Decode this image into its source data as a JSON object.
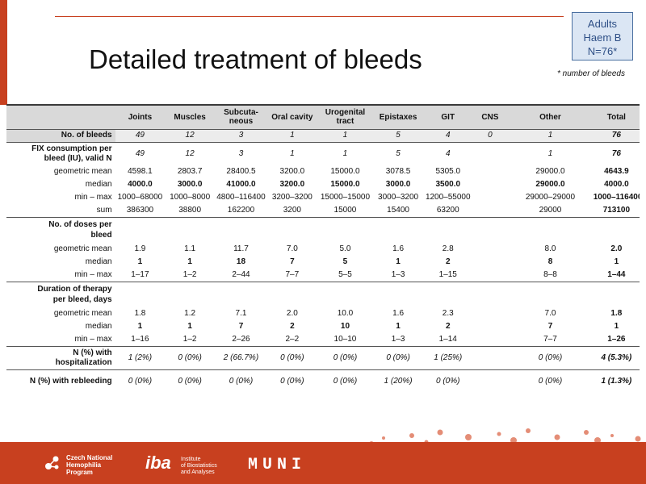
{
  "title": "Detailed treatment of bleeds",
  "badge": {
    "line1": "Adults",
    "line2": "Haem B",
    "line3": "N=76*"
  },
  "footnote": "* number of bleeds",
  "columns": [
    "Joints",
    "Muscles",
    "Subcuta-neous",
    "Oral cavity",
    "Urogenital tract",
    "Epistaxes",
    "GIT",
    "CNS",
    "Other",
    "Total"
  ],
  "column_lines": [
    [
      "Joints"
    ],
    [
      "Muscles"
    ],
    [
      "Subcuta-",
      "neous"
    ],
    [
      "Oral cavity"
    ],
    [
      "Urogenital",
      "tract"
    ],
    [
      "Epistaxes"
    ],
    [
      "GIT"
    ],
    [
      "CNS"
    ],
    [
      "Other"
    ],
    [
      "Total"
    ]
  ],
  "rows": {
    "no_bleeds": {
      "label": "No. of bleeds",
      "values": [
        "49",
        "12",
        "3",
        "1",
        "1",
        "5",
        "4",
        "0",
        "1",
        "76"
      ]
    },
    "fix_valid": {
      "label_line1": "FIX consumption per",
      "label_line2": "bleed (IU), valid N",
      "values": [
        "49",
        "12",
        "3",
        "1",
        "1",
        "5",
        "4",
        "",
        "1",
        "76"
      ]
    },
    "fix_geo": {
      "label": "geometric mean",
      "values": [
        "4598.1",
        "2803.7",
        "28400.5",
        "3200.0",
        "15000.0",
        "3078.5",
        "5305.0",
        "",
        "29000.0",
        "4643.9"
      ]
    },
    "fix_median": {
      "label": "median",
      "values": [
        "4000.0",
        "3000.0",
        "41000.0",
        "3200.0",
        "15000.0",
        "3000.0",
        "3500.0",
        "",
        "29000.0",
        "4000.0"
      ]
    },
    "fix_minmax": {
      "label": "min – max",
      "values": [
        "1000–68000",
        "1000–8000",
        "4800–116400",
        "3200–3200",
        "15000–15000",
        "3000–3200",
        "1200–55000",
        "",
        "29000–29000",
        "1000–116400"
      ]
    },
    "fix_sum": {
      "label": "sum",
      "values": [
        "386300",
        "38800",
        "162200",
        "3200",
        "15000",
        "15400",
        "63200",
        "",
        "29000",
        "713100"
      ]
    },
    "doses_header": {
      "label_line1": "No. of doses per",
      "label_line2": "bleed"
    },
    "doses_geo": {
      "label": "geometric mean",
      "values": [
        "1.9",
        "1.1",
        "11.7",
        "7.0",
        "5.0",
        "1.6",
        "2.8",
        "",
        "8.0",
        "2.0"
      ]
    },
    "doses_median": {
      "label": "median",
      "values": [
        "1",
        "1",
        "18",
        "7",
        "5",
        "1",
        "2",
        "",
        "8",
        "1"
      ]
    },
    "doses_minmax": {
      "label": "min – max",
      "values": [
        "1–17",
        "1–2",
        "2–44",
        "7–7",
        "5–5",
        "1–3",
        "1–15",
        "",
        "8–8",
        "1–44"
      ]
    },
    "dur_header": {
      "label_line1": "Duration of therapy",
      "label_line2": "per bleed, days"
    },
    "dur_geo": {
      "label": "geometric mean",
      "values": [
        "1.8",
        "1.2",
        "7.1",
        "2.0",
        "10.0",
        "1.6",
        "2.3",
        "",
        "7.0",
        "1.8"
      ]
    },
    "dur_median": {
      "label": "median",
      "values": [
        "1",
        "1",
        "7",
        "2",
        "10",
        "1",
        "2",
        "",
        "7",
        "1"
      ]
    },
    "dur_minmax": {
      "label": "min – max",
      "values": [
        "1–16",
        "1–2",
        "2–26",
        "2–2",
        "10–10",
        "1–3",
        "1–14",
        "",
        "7–7",
        "1–26"
      ]
    },
    "hosp": {
      "label_line1": "N (%) with",
      "label_line2": "hospitalization",
      "values": [
        "1 (2%)",
        "0 (0%)",
        "2 (66.7%)",
        "0 (0%)",
        "0 (0%)",
        "0 (0%)",
        "1 (25%)",
        "",
        "0 (0%)",
        "4 (5.3%)"
      ]
    },
    "rebleed": {
      "label": "N (%) with rebleeding",
      "values": [
        "0 (0%)",
        "0 (0%)",
        "0 (0%)",
        "0 (0%)",
        "0 (0%)",
        "1 (20%)",
        "0 (0%)",
        "",
        "0 (0%)",
        "1 (1.3%)"
      ]
    }
  },
  "footer": {
    "chnp_line1": "Czech National",
    "chnp_line2": "Hemophilia",
    "chnp_line3": "Program",
    "iba_mark": "iba",
    "iba_line1": "Institute",
    "iba_line2": "of Biostatistics",
    "iba_line3": "and Analyses",
    "muni": "MUNI"
  }
}
